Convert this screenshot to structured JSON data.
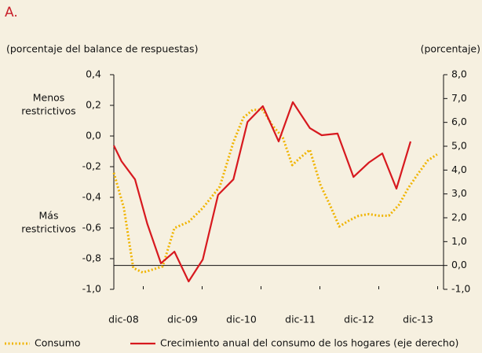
{
  "chart_data": {
    "type": "line",
    "title": "A.",
    "y_label": "(porcentaje del balance de respuestas)",
    "y2_label": "(porcentaje)",
    "annotations": [
      [
        "Menos",
        "restrictivos"
      ],
      [
        "Más",
        "restrictivos"
      ]
    ],
    "xlim": [
      2008.5,
      2014.1
    ],
    "xticks": [
      {
        "value": 2009,
        "label": "dic-08"
      },
      {
        "value": 2010,
        "label": "dic-09"
      },
      {
        "value": 2011,
        "label": "dic-10"
      },
      {
        "value": 2012,
        "label": "dic-11"
      },
      {
        "value": 2013,
        "label": "dic-12"
      },
      {
        "value": 2014,
        "label": "dic-13"
      }
    ],
    "ylim": [
      -1.0,
      0.4
    ],
    "yticks": [
      {
        "value": -1.0,
        "label": "-1,0"
      },
      {
        "value": -0.8,
        "label": "-0,8"
      },
      {
        "value": -0.6,
        "label": "-0,6"
      },
      {
        "value": -0.4,
        "label": "-0,4"
      },
      {
        "value": -0.2,
        "label": "-0,2"
      },
      {
        "value": 0.0,
        "label": "0,0"
      },
      {
        "value": 0.2,
        "label": "0,2"
      },
      {
        "value": 0.4,
        "label": "0,4"
      }
    ],
    "y2lim": [
      -1.0,
      8.0
    ],
    "y2ticks": [
      {
        "value": -1.0,
        "label": "-1,0"
      },
      {
        "value": 0.0,
        "label": "0,0"
      },
      {
        "value": 1.0,
        "label": "1,0"
      },
      {
        "value": 2.0,
        "label": "2,0"
      },
      {
        "value": 3.0,
        "label": "3,0"
      },
      {
        "value": 4.0,
        "label": "4,0"
      },
      {
        "value": 5.0,
        "label": "5,0"
      },
      {
        "value": 6.0,
        "label": "6,0"
      },
      {
        "value": 7.0,
        "label": "7,0"
      },
      {
        "value": 8.0,
        "label": "8,0"
      }
    ],
    "series": [
      {
        "name": "Consumo",
        "color": "#f0b400",
        "style": "dotted",
        "axis": "y",
        "x": [
          2008.5,
          2008.67,
          2008.83,
          2008.99,
          2009.17,
          2009.33,
          2009.53,
          2009.77,
          2010.01,
          2010.3,
          2010.53,
          2010.7,
          2010.86,
          2011.03,
          2011.19,
          2011.37,
          2011.53,
          2011.67,
          2011.83,
          2012.01,
          2012.17,
          2012.33,
          2012.5,
          2012.66,
          2012.83,
          2013.01,
          2013.17,
          2013.34,
          2013.5,
          2013.66,
          2013.83,
          2013.99
        ],
        "values": [
          -0.24,
          -0.47,
          -0.86,
          -0.89,
          -0.87,
          -0.85,
          -0.6,
          -0.56,
          -0.47,
          -0.33,
          -0.04,
          0.12,
          0.17,
          0.17,
          0.07,
          -0.01,
          -0.19,
          -0.14,
          -0.09,
          -0.32,
          -0.45,
          -0.59,
          -0.55,
          -0.52,
          -0.51,
          -0.52,
          -0.52,
          -0.45,
          -0.34,
          -0.25,
          -0.16,
          -0.12
        ]
      },
      {
        "name": "Crecimiento anual del consumo de los hogares (eje derecho)",
        "color": "#d7191f",
        "style": "solid",
        "axis": "y2",
        "x": [
          2008.5,
          2008.63,
          2008.86,
          2009.07,
          2009.3,
          2009.53,
          2009.77,
          2010.01,
          2010.27,
          2010.53,
          2010.77,
          2011.03,
          2011.3,
          2011.54,
          2011.83,
          2012.03,
          2012.3,
          2012.57,
          2012.83,
          2013.06,
          2013.3,
          2013.54
        ],
        "values": [
          5.03,
          4.37,
          3.61,
          1.74,
          0.09,
          0.58,
          -0.67,
          0.25,
          2.96,
          3.61,
          6.02,
          6.68,
          5.2,
          6.85,
          5.76,
          5.46,
          5.53,
          3.71,
          4.31,
          4.7,
          3.22,
          5.2
        ]
      }
    ]
  }
}
